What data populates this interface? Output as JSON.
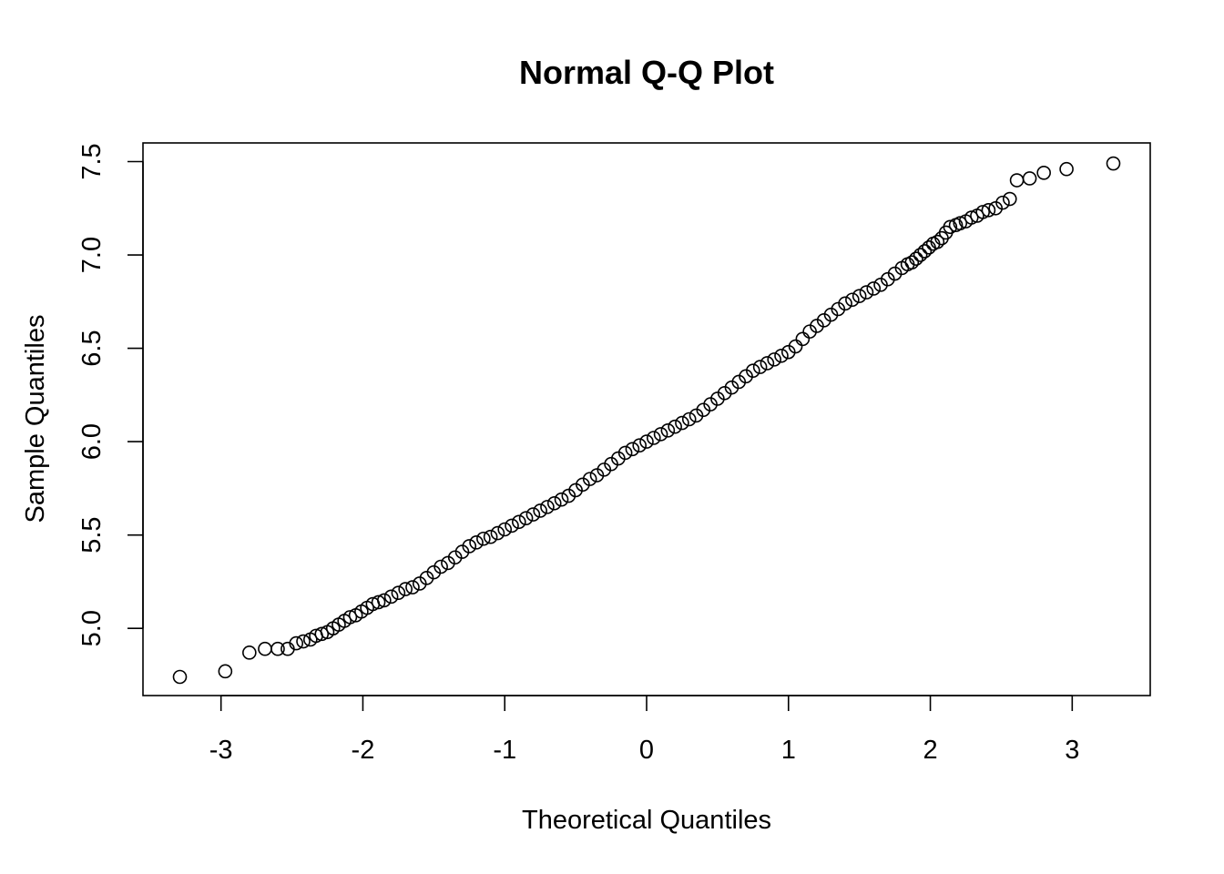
{
  "chart_data": {
    "type": "scatter",
    "title": "Normal Q-Q Plot",
    "xlabel": "Theoretical Quantiles",
    "ylabel": "Sample Quantiles",
    "xlim": [
      -3.55,
      3.55
    ],
    "ylim": [
      4.64,
      7.6
    ],
    "x_ticks": [
      -3,
      -2,
      -1,
      0,
      1,
      2,
      3
    ],
    "x_tick_labels": [
      "-3",
      "-2",
      "-1",
      "0",
      "1",
      "2",
      "3"
    ],
    "y_ticks": [
      5.0,
      5.5,
      6.0,
      6.5,
      7.0,
      7.5
    ],
    "y_tick_labels": [
      "5.0",
      "5.5",
      "6.0",
      "6.5",
      "7.0",
      "7.5"
    ],
    "grid": false,
    "marker": "open-circle",
    "point_color": "#000000",
    "points": [
      [
        -3.29,
        4.74
      ],
      [
        -2.97,
        4.77
      ],
      [
        -2.8,
        4.87
      ],
      [
        -2.69,
        4.89
      ],
      [
        -2.6,
        4.89
      ],
      [
        -2.53,
        4.89
      ],
      [
        -2.47,
        4.92
      ],
      [
        -2.42,
        4.93
      ],
      [
        -2.37,
        4.94
      ],
      [
        -2.33,
        4.96
      ],
      [
        -2.29,
        4.97
      ],
      [
        -2.25,
        4.98
      ],
      [
        -2.21,
        5.0
      ],
      [
        -2.17,
        5.02
      ],
      [
        -2.13,
        5.04
      ],
      [
        -2.09,
        5.06
      ],
      [
        -2.05,
        5.07
      ],
      [
        -2.01,
        5.09
      ],
      [
        -1.97,
        5.11
      ],
      [
        -1.93,
        5.13
      ],
      [
        -1.89,
        5.14
      ],
      [
        -1.85,
        5.15
      ],
      [
        -1.8,
        5.17
      ],
      [
        -1.75,
        5.19
      ],
      [
        -1.7,
        5.21
      ],
      [
        -1.65,
        5.22
      ],
      [
        -1.6,
        5.24
      ],
      [
        -1.55,
        5.27
      ],
      [
        -1.5,
        5.3
      ],
      [
        -1.45,
        5.33
      ],
      [
        -1.4,
        5.35
      ],
      [
        -1.35,
        5.38
      ],
      [
        -1.3,
        5.41
      ],
      [
        -1.25,
        5.44
      ],
      [
        -1.2,
        5.46
      ],
      [
        -1.15,
        5.48
      ],
      [
        -1.1,
        5.49
      ],
      [
        -1.05,
        5.51
      ],
      [
        -1.0,
        5.53
      ],
      [
        -0.95,
        5.55
      ],
      [
        -0.9,
        5.57
      ],
      [
        -0.85,
        5.59
      ],
      [
        -0.8,
        5.61
      ],
      [
        -0.75,
        5.63
      ],
      [
        -0.7,
        5.65
      ],
      [
        -0.65,
        5.67
      ],
      [
        -0.6,
        5.69
      ],
      [
        -0.55,
        5.71
      ],
      [
        -0.5,
        5.74
      ],
      [
        -0.45,
        5.77
      ],
      [
        -0.4,
        5.8
      ],
      [
        -0.35,
        5.82
      ],
      [
        -0.3,
        5.85
      ],
      [
        -0.25,
        5.88
      ],
      [
        -0.2,
        5.91
      ],
      [
        -0.15,
        5.94
      ],
      [
        -0.1,
        5.96
      ],
      [
        -0.05,
        5.98
      ],
      [
        0.0,
        6.0
      ],
      [
        0.05,
        6.02
      ],
      [
        0.1,
        6.04
      ],
      [
        0.15,
        6.06
      ],
      [
        0.2,
        6.08
      ],
      [
        0.25,
        6.1
      ],
      [
        0.3,
        6.12
      ],
      [
        0.35,
        6.14
      ],
      [
        0.4,
        6.17
      ],
      [
        0.45,
        6.2
      ],
      [
        0.5,
        6.23
      ],
      [
        0.55,
        6.26
      ],
      [
        0.6,
        6.29
      ],
      [
        0.65,
        6.32
      ],
      [
        0.7,
        6.35
      ],
      [
        0.75,
        6.38
      ],
      [
        0.8,
        6.4
      ],
      [
        0.85,
        6.42
      ],
      [
        0.9,
        6.44
      ],
      [
        0.95,
        6.46
      ],
      [
        1.0,
        6.48
      ],
      [
        1.05,
        6.51
      ],
      [
        1.1,
        6.55
      ],
      [
        1.15,
        6.59
      ],
      [
        1.2,
        6.62
      ],
      [
        1.25,
        6.65
      ],
      [
        1.3,
        6.68
      ],
      [
        1.35,
        6.71
      ],
      [
        1.4,
        6.74
      ],
      [
        1.45,
        6.76
      ],
      [
        1.5,
        6.78
      ],
      [
        1.55,
        6.8
      ],
      [
        1.6,
        6.82
      ],
      [
        1.65,
        6.84
      ],
      [
        1.7,
        6.87
      ],
      [
        1.75,
        6.9
      ],
      [
        1.8,
        6.93
      ],
      [
        1.84,
        6.95
      ],
      [
        1.87,
        6.96
      ],
      [
        1.9,
        6.98
      ],
      [
        1.93,
        7.0
      ],
      [
        1.96,
        7.02
      ],
      [
        1.99,
        7.04
      ],
      [
        2.02,
        7.06
      ],
      [
        2.05,
        7.07
      ],
      [
        2.08,
        7.09
      ],
      [
        2.11,
        7.12
      ],
      [
        2.14,
        7.15
      ],
      [
        2.18,
        7.16
      ],
      [
        2.21,
        7.17
      ],
      [
        2.25,
        7.18
      ],
      [
        2.29,
        7.2
      ],
      [
        2.33,
        7.21
      ],
      [
        2.37,
        7.23
      ],
      [
        2.41,
        7.24
      ],
      [
        2.46,
        7.25
      ],
      [
        2.51,
        7.28
      ],
      [
        2.56,
        7.3
      ],
      [
        2.61,
        7.4
      ],
      [
        2.7,
        7.41
      ],
      [
        2.8,
        7.44
      ],
      [
        2.96,
        7.46
      ],
      [
        3.29,
        7.49
      ]
    ]
  }
}
